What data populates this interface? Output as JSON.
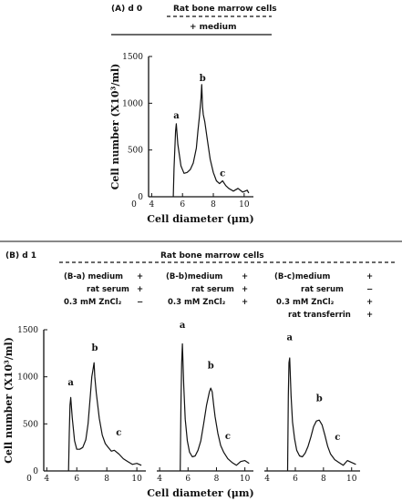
{
  "panel_a": {
    "label": "(A) d 0",
    "cells": "Rat bone marrow cells",
    "treatment": "+ medium"
  },
  "panel_b": {
    "label": "(B) d 1",
    "cells": "Rat bone marrow cells",
    "subpanels": [
      {
        "rows": [
          {
            "label": "(B-a) medium",
            "sign": "+"
          },
          {
            "label": "rat serum",
            "sign": "+"
          },
          {
            "label": "0.3 mM ZnCl₂",
            "sign": "−"
          }
        ]
      },
      {
        "rows": [
          {
            "label": "(B-b)medium",
            "sign": "+"
          },
          {
            "label": "rat serum",
            "sign": "+"
          },
          {
            "label": "0.3 mM ZnCl₂",
            "sign": "+"
          }
        ]
      },
      {
        "rows": [
          {
            "label": "(B-c)medium",
            "sign": "+"
          },
          {
            "label": "rat serum",
            "sign": "−"
          },
          {
            "label": "0.3 mM ZnCl₂",
            "sign": "+"
          },
          {
            "label": "rat transferrin",
            "sign": "+"
          }
        ]
      }
    ]
  },
  "chart_data": [
    {
      "type": "line",
      "ylabel": "Cell number (X10³/ml)",
      "xlabel": "Cell diameter (μm)",
      "x_ticks": [
        "0",
        "4",
        "6",
        "8",
        "10"
      ],
      "y_ticks": [
        "0",
        "500",
        "1000",
        "1500"
      ],
      "ylim": [
        0,
        1500
      ],
      "peak_labels": [
        {
          "text": "a",
          "x": 5.6,
          "y": 800
        },
        {
          "text": "b",
          "x": 7.3,
          "y": 1200
        },
        {
          "text": "c",
          "x": 8.6,
          "y": 180
        }
      ],
      "series": [
        {
          "x": [
            5.4,
            5.45,
            5.55,
            5.6,
            5.7,
            5.9,
            6.1,
            6.3,
            6.5,
            6.7,
            6.9,
            7.0,
            7.1,
            7.2,
            7.25,
            7.3,
            7.35,
            7.45,
            7.6,
            7.8,
            8.0,
            8.2,
            8.4,
            8.6,
            8.8,
            9.0,
            9.3,
            9.6,
            9.9,
            10.2,
            10.3
          ],
          "y": [
            0,
            300,
            700,
            780,
            560,
            330,
            250,
            260,
            290,
            360,
            520,
            700,
            860,
            1050,
            1200,
            960,
            880,
            800,
            620,
            400,
            260,
            170,
            140,
            170,
            120,
            90,
            60,
            90,
            50,
            70,
            40
          ]
        }
      ]
    },
    {
      "type": "line",
      "ylabel": "Cell number (X10³/ml)",
      "xlabel": "Cell diameter (μm)",
      "x_ticks": [
        "0",
        "4",
        "6",
        "8",
        "10"
      ],
      "y_ticks": [
        "0",
        "500",
        "1000",
        "1500"
      ],
      "ylim": [
        0,
        1500
      ],
      "peak_labels": [
        {
          "text": "a",
          "x": 5.6,
          "y": 870
        },
        {
          "text": "b",
          "x": 7.2,
          "y": 1240
        },
        {
          "text": "c",
          "x": 8.8,
          "y": 340
        }
      ],
      "series": [
        {
          "x": [
            5.45,
            5.5,
            5.55,
            5.6,
            5.7,
            5.85,
            6.0,
            6.2,
            6.4,
            6.6,
            6.75,
            6.9,
            7.0,
            7.1,
            7.15,
            7.2,
            7.3,
            7.5,
            7.7,
            7.9,
            8.1,
            8.3,
            8.5,
            8.8,
            9.1,
            9.4,
            9.7,
            10.0,
            10.3
          ],
          "y": [
            0,
            400,
            700,
            780,
            560,
            320,
            230,
            230,
            250,
            330,
            500,
            800,
            1000,
            1100,
            1150,
            1000,
            830,
            560,
            380,
            290,
            250,
            210,
            220,
            180,
            130,
            100,
            70,
            80,
            60
          ]
        }
      ]
    },
    {
      "type": "line",
      "xlabel": "Cell diameter (μm)",
      "x_ticks": [
        "4",
        "6",
        "8",
        "10"
      ],
      "ylim": [
        0,
        1500
      ],
      "peak_labels": [
        {
          "text": "a",
          "x": 5.6,
          "y": 1480
        },
        {
          "text": "b",
          "x": 7.6,
          "y": 1050
        },
        {
          "text": "c",
          "x": 8.8,
          "y": 300
        }
      ],
      "series": [
        {
          "x": [
            5.45,
            5.5,
            5.55,
            5.6,
            5.7,
            5.8,
            5.95,
            6.1,
            6.3,
            6.5,
            6.7,
            6.9,
            7.1,
            7.3,
            7.5,
            7.6,
            7.7,
            7.8,
            7.9,
            8.1,
            8.3,
            8.5,
            8.8,
            9.1,
            9.4,
            9.7,
            10.0,
            10.3
          ],
          "y": [
            0,
            700,
            1150,
            1350,
            900,
            550,
            320,
            200,
            150,
            160,
            220,
            320,
            500,
            700,
            840,
            880,
            840,
            700,
            580,
            400,
            270,
            200,
            130,
            90,
            60,
            100,
            110,
            80
          ]
        }
      ]
    },
    {
      "type": "line",
      "xlabel": "Cell diameter (μm)",
      "x_ticks": [
        "4",
        "6",
        "8",
        "10"
      ],
      "ylim": [
        0,
        1500
      ],
      "peak_labels": [
        {
          "text": "a",
          "x": 5.6,
          "y": 1350
        },
        {
          "text": "b",
          "x": 7.7,
          "y": 700
        },
        {
          "text": "c",
          "x": 9.0,
          "y": 290
        }
      ],
      "series": [
        {
          "x": [
            5.45,
            5.5,
            5.55,
            5.6,
            5.7,
            5.8,
            5.95,
            6.1,
            6.3,
            6.5,
            6.7,
            6.9,
            7.1,
            7.3,
            7.5,
            7.7,
            7.9,
            8.1,
            8.3,
            8.5,
            8.8,
            9.1,
            9.4,
            9.7,
            10.0,
            10.3
          ],
          "y": [
            0,
            800,
            1150,
            1200,
            800,
            520,
            340,
            220,
            160,
            150,
            190,
            260,
            360,
            470,
            530,
            540,
            490,
            380,
            260,
            180,
            120,
            90,
            60,
            110,
            90,
            70
          ]
        }
      ]
    }
  ]
}
